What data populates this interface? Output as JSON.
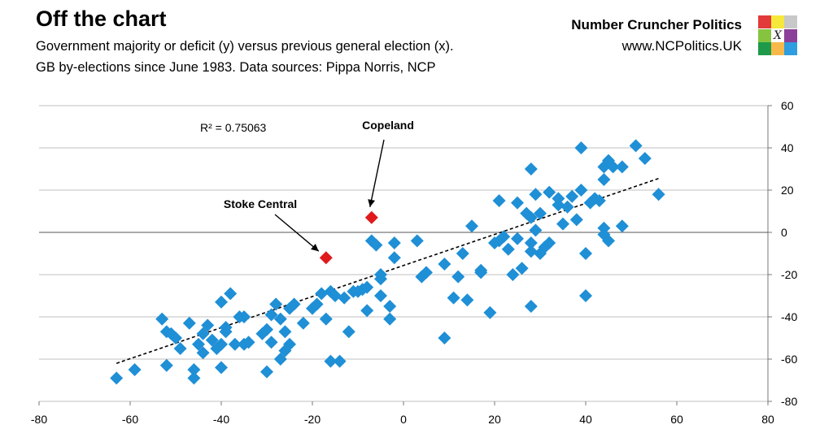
{
  "header": {
    "title": "Off the chart",
    "subtitle_line1": "Government majority or deficit (y) versus previous general election (x).",
    "subtitle_line2": "GB by-elections since June 1983. Data sources: Pippa Norris, NCP"
  },
  "brand": {
    "name": "Number Cruncher Politics",
    "url": "www.NCPolitics.UK",
    "logo_colors": [
      "#e23a3a",
      "#f5e83b",
      "#c8c8c8",
      "#86c440",
      "#ffffff",
      "#8b3f98",
      "#1e9a4a",
      "#f8b94a",
      "#2e9ee0"
    ],
    "logo_mark": "X"
  },
  "chart_data": {
    "type": "scatter",
    "xlim": [
      -80,
      80
    ],
    "ylim": [
      -80,
      60
    ],
    "x_ticks": [
      -80,
      -60,
      -40,
      -20,
      0,
      20,
      40,
      60,
      80
    ],
    "y_ticks": [
      60,
      40,
      20,
      0,
      -20,
      -40,
      -60,
      -80
    ],
    "grid": true,
    "r_squared_label": "R² = 0.75063",
    "trendline": {
      "style": "dashed",
      "points": [
        [
          -63,
          -62
        ],
        [
          56,
          25.5
        ]
      ]
    },
    "colors": {
      "points": "#1f8fd6",
      "highlight": "#e0191b",
      "grid": "#bfbfbf"
    },
    "series": [
      {
        "values": [
          [
            -63,
            -69
          ],
          [
            -59,
            -65
          ],
          [
            -53,
            -41
          ],
          [
            -52,
            -63
          ],
          [
            -52,
            -47
          ],
          [
            -51,
            -48
          ],
          [
            -50,
            -50
          ],
          [
            -49,
            -55
          ],
          [
            -47,
            -43
          ],
          [
            -46,
            -65
          ],
          [
            -46,
            -69
          ],
          [
            -45,
            -53
          ],
          [
            -44,
            -57
          ],
          [
            -44,
            -48
          ],
          [
            -43,
            -44
          ],
          [
            -42,
            -51
          ],
          [
            -41,
            -55
          ],
          [
            -40,
            -53
          ],
          [
            -40,
            -64
          ],
          [
            -39,
            -47
          ],
          [
            -39,
            -45
          ],
          [
            -40,
            -33
          ],
          [
            -38,
            -29
          ],
          [
            -37,
            -53
          ],
          [
            -36,
            -40
          ],
          [
            -35,
            -40
          ],
          [
            -35,
            -53
          ],
          [
            -34,
            -52
          ],
          [
            -31,
            -48
          ],
          [
            -30,
            -66
          ],
          [
            -30,
            -46
          ],
          [
            -29,
            -39
          ],
          [
            -29,
            -52
          ],
          [
            -28,
            -34
          ],
          [
            -27,
            -41
          ],
          [
            -27,
            -60
          ],
          [
            -26,
            -47
          ],
          [
            -26,
            -56
          ],
          [
            -25,
            -53
          ],
          [
            -25,
            -36
          ],
          [
            -24,
            -34
          ],
          [
            -22,
            -43
          ],
          [
            -20,
            -36
          ],
          [
            -19,
            -34
          ],
          [
            -18,
            -29
          ],
          [
            -17,
            -41
          ],
          [
            -16,
            -61
          ],
          [
            -16,
            -28
          ],
          [
            -15,
            -30
          ],
          [
            -14,
            -61
          ],
          [
            -13,
            -31
          ],
          [
            -12,
            -47
          ],
          [
            -11,
            -28
          ],
          [
            -10,
            -28
          ],
          [
            -9,
            -27
          ],
          [
            -8,
            -26
          ],
          [
            -8,
            -37
          ],
          [
            -7,
            -4
          ],
          [
            -6,
            -6
          ],
          [
            -5,
            -22
          ],
          [
            -5,
            -30
          ],
          [
            -5,
            -20
          ],
          [
            -3,
            -35
          ],
          [
            -3,
            -41
          ],
          [
            -2,
            -5
          ],
          [
            -2,
            -12
          ],
          [
            3,
            -4
          ],
          [
            4,
            -21
          ],
          [
            5,
            -19
          ],
          [
            9,
            -15
          ],
          [
            9,
            -50
          ],
          [
            11,
            -31
          ],
          [
            12,
            -21
          ],
          [
            13,
            -10
          ],
          [
            14,
            -32
          ],
          [
            15,
            3
          ],
          [
            17,
            -19
          ],
          [
            17,
            -18
          ],
          [
            19,
            -38
          ],
          [
            20,
            -5
          ],
          [
            21,
            -4
          ],
          [
            21,
            15
          ],
          [
            22,
            -2
          ],
          [
            23,
            -8
          ],
          [
            24,
            -20
          ],
          [
            25,
            14
          ],
          [
            25,
            -3
          ],
          [
            26,
            -17
          ],
          [
            27,
            9
          ],
          [
            28,
            -9
          ],
          [
            28,
            -5
          ],
          [
            28,
            30
          ],
          [
            28,
            -35
          ],
          [
            28,
            7
          ],
          [
            29,
            1
          ],
          [
            29,
            18
          ],
          [
            30,
            9
          ],
          [
            30,
            -10
          ],
          [
            31,
            -7
          ],
          [
            32,
            19
          ],
          [
            32,
            -5
          ],
          [
            34,
            13
          ],
          [
            34,
            16
          ],
          [
            35,
            4
          ],
          [
            36,
            12
          ],
          [
            37,
            17
          ],
          [
            38,
            6
          ],
          [
            39,
            20
          ],
          [
            40,
            -10
          ],
          [
            39,
            40
          ],
          [
            40,
            -30
          ],
          [
            41,
            14
          ],
          [
            42,
            16
          ],
          [
            43,
            15
          ],
          [
            44,
            2
          ],
          [
            44,
            -1
          ],
          [
            44,
            31
          ],
          [
            44,
            25
          ],
          [
            45,
            34
          ],
          [
            45,
            -4
          ],
          [
            46,
            31
          ],
          [
            48,
            31
          ],
          [
            48,
            3
          ],
          [
            51,
            41
          ],
          [
            53,
            35
          ],
          [
            56,
            18
          ]
        ]
      },
      {
        "highlight": true,
        "values": [
          [
            -17,
            -12
          ],
          [
            -7,
            7
          ]
        ]
      }
    ],
    "annotations": [
      {
        "label": "Stoke Central",
        "point": [
          -17,
          -12
        ]
      },
      {
        "label": "Copeland",
        "point": [
          -7,
          7
        ]
      }
    ]
  }
}
